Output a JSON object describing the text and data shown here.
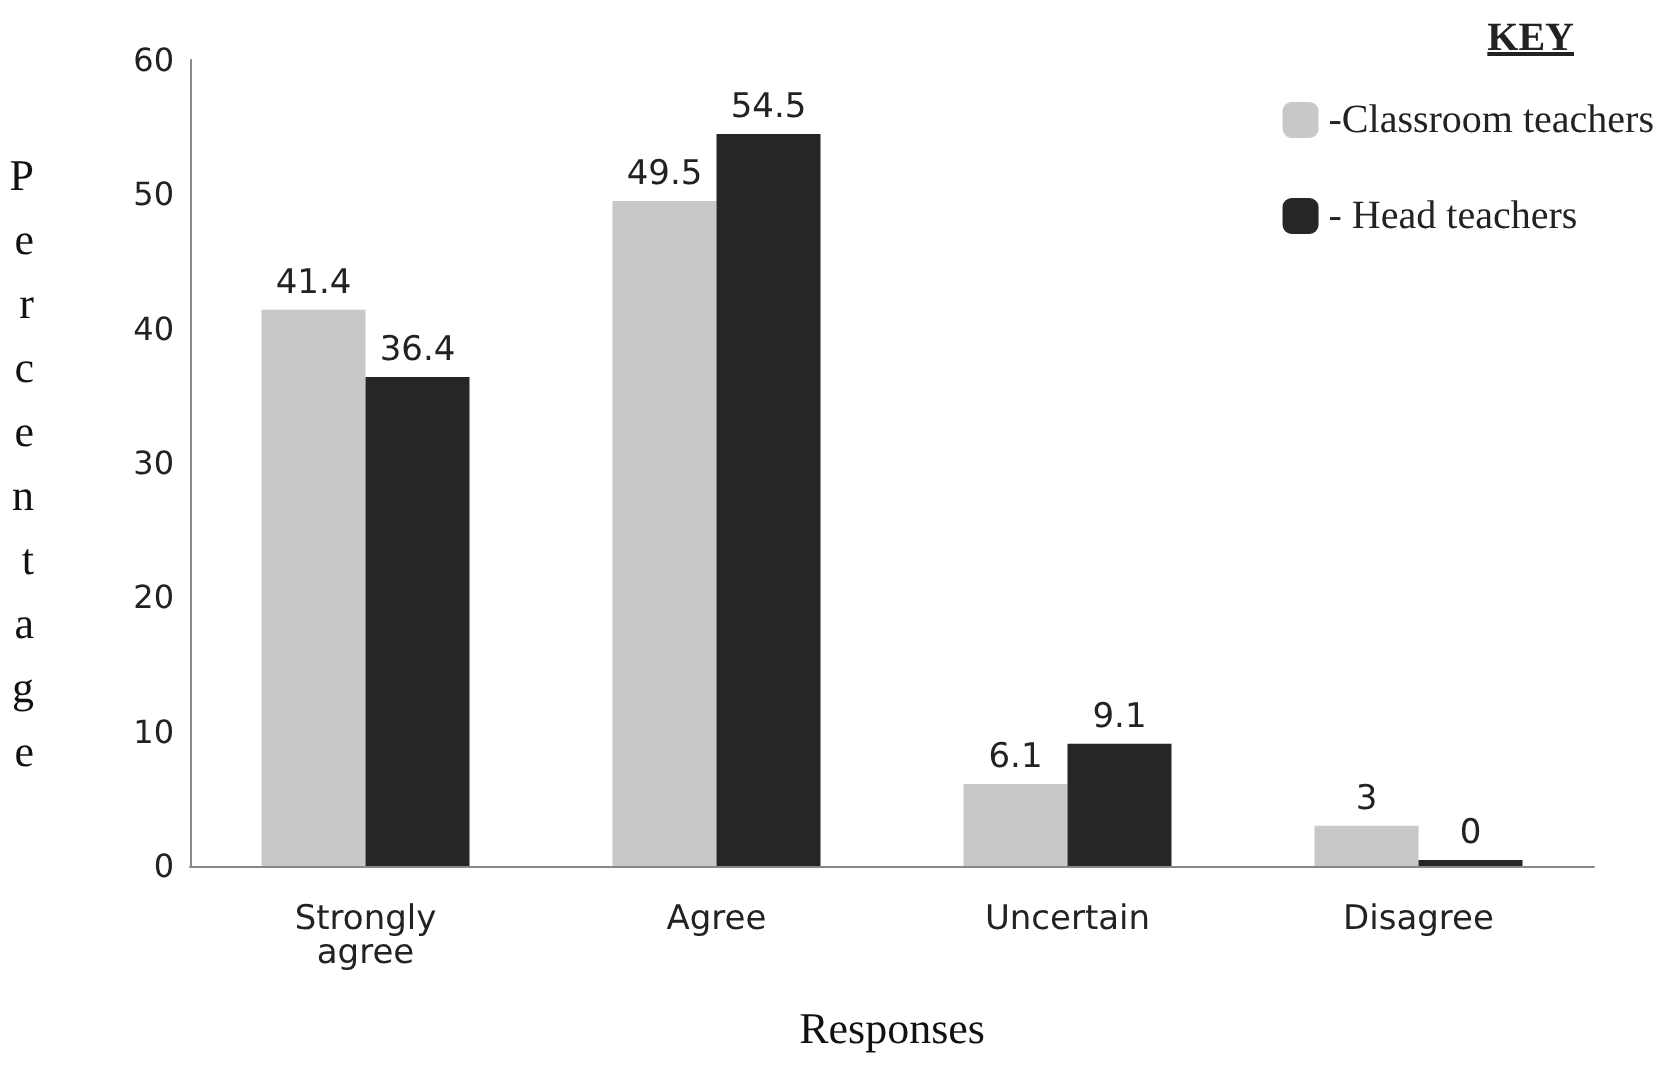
{
  "chart_data": {
    "type": "bar",
    "xlabel": "Responses",
    "ylabel": "Percentage",
    "legend_title": "KEY",
    "categories": [
      "Strongly\nagree",
      "Agree",
      "Uncertain",
      "Disagree"
    ],
    "series": [
      {
        "name": "-Classroom teachers",
        "color": "#c8c8c8",
        "values": [
          41.4,
          49.5,
          6.1,
          3
        ]
      },
      {
        "name": "- Head teachers",
        "color": "#262626",
        "values": [
          36.4,
          54.5,
          9.1,
          0
        ]
      }
    ],
    "ylim": [
      0,
      60
    ],
    "yticks": [
      0,
      10,
      20,
      30,
      40,
      50,
      60
    ],
    "data_labels": true,
    "legend": "top right",
    "grid": false
  }
}
